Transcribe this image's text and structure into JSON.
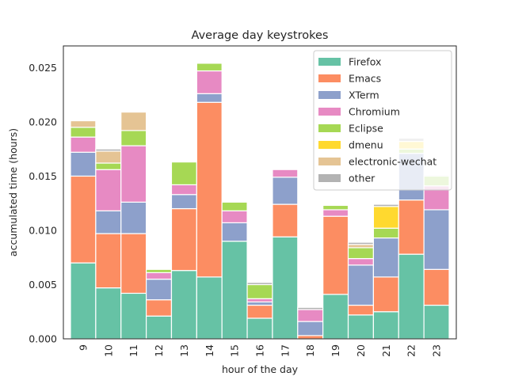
{
  "chart_data": {
    "type": "bar",
    "stacked": true,
    "title": "Average day keystrokes",
    "xlabel": "hour of the day",
    "ylabel": "accumulated time (hours)",
    "ylim": [
      0,
      0.027
    ],
    "yticks": [
      "0.000",
      "0.005",
      "0.010",
      "0.015",
      "0.020",
      "0.025"
    ],
    "ytick_values": [
      0,
      0.005,
      0.01,
      0.015,
      0.02,
      0.025
    ],
    "grid": false,
    "legend_position": "top-right",
    "categories": [
      "9",
      "10",
      "11",
      "12",
      "13",
      "14",
      "15",
      "16",
      "17",
      "18",
      "19",
      "20",
      "21",
      "22",
      "23"
    ],
    "series": [
      {
        "name": "Firefox",
        "color": "#66c2a5",
        "values": [
          0.007,
          0.0047,
          0.0042,
          0.0021,
          0.0063,
          0.0057,
          0.009,
          0.0019,
          0.0094,
          0.0,
          0.0041,
          0.0022,
          0.0025,
          0.0078,
          0.0031
        ]
      },
      {
        "name": "Emacs",
        "color": "#fc8d62",
        "values": [
          0.008,
          0.005,
          0.0055,
          0.0015,
          0.0057,
          0.0161,
          0.0,
          0.0012,
          0.003,
          0.0003,
          0.0072,
          0.0009,
          0.0032,
          0.005,
          0.0033
        ]
      },
      {
        "name": "XTerm",
        "color": "#8da0cb",
        "values": [
          0.0022,
          0.0021,
          0.0029,
          0.0019,
          0.0013,
          0.0008,
          0.0017,
          0.0003,
          0.0025,
          0.0013,
          0.0,
          0.0037,
          0.0036,
          0.0043,
          0.0055
        ]
      },
      {
        "name": "Chromium",
        "color": "#e78ac3",
        "values": [
          0.0014,
          0.0038,
          0.0052,
          0.0006,
          0.0009,
          0.0021,
          0.0011,
          0.0003,
          0.0007,
          0.0011,
          0.0006,
          0.0006,
          0.0,
          0.0,
          0.0022
        ]
      },
      {
        "name": "Eclipse",
        "color": "#a6d854",
        "values": [
          0.0009,
          0.0006,
          0.0014,
          0.0003,
          0.0021,
          0.0007,
          0.0008,
          0.0013,
          0.0,
          0.0,
          0.0004,
          0.001,
          0.0009,
          0.0004,
          0.0009
        ]
      },
      {
        "name": "dmenu",
        "color": "#ffd92f",
        "values": [
          0.0,
          0.0,
          0.0,
          0.0,
          0.0,
          0.0,
          0.0,
          0.0,
          0.0,
          0.0,
          0.0,
          0.0,
          0.002,
          0.0007,
          0.0
        ]
      },
      {
        "name": "electronic-wechat",
        "color": "#e5c494",
        "values": [
          0.0006,
          0.0011,
          0.0017,
          0.0,
          0.0,
          0.0,
          0.0,
          0.0,
          0.0,
          0.0,
          0.0,
          0.0003,
          0.0,
          0.0,
          0.0
        ]
      },
      {
        "name": "other",
        "color": "#b3b3b3",
        "values": [
          0.0,
          0.0002,
          0.0,
          0.0,
          0.0,
          0.0,
          0.0,
          0.0002,
          0.0,
          0.0002,
          0.0,
          0.0002,
          0.0002,
          0.0003,
          0.0001
        ]
      }
    ]
  }
}
